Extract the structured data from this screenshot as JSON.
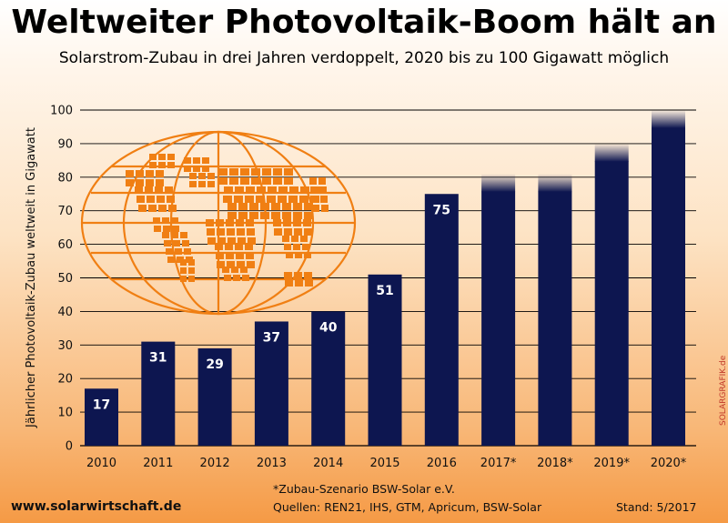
{
  "header": {
    "title": "Weltweiter Photovoltaik-Boom hält an",
    "subtitle": "Solarstrom-Zubau in drei Jahren verdoppelt, 2020 bis zu 100 Gigawatt möglich"
  },
  "footer": {
    "footnote": "*Zubau-Szenario BSW-Solar e.V.",
    "sources": "Quellen: REN21, IHS, GTM, Apricum, BSW-Solar",
    "website": "www.solarwirtschaft.de",
    "stand": "Stand: 5/2017",
    "credit": "SOLARGRAFIK.de"
  },
  "colors": {
    "bar": "#0d1650",
    "accent": "#f07f13",
    "grid": "#000000"
  },
  "illustration": {
    "icon": "globe-with-solar-panels-icon"
  },
  "chart_data": {
    "type": "bar",
    "title": "Weltweiter Photovoltaik-Boom hält an",
    "subtitle": "Solarstrom-Zubau in drei Jahren verdoppelt, 2020 bis zu 100 Gigawatt möglich",
    "xlabel": "",
    "ylabel": "Jährlicher Photovoltaik-Zubau weltweit in Gigawatt",
    "categories": [
      "2010",
      "2011",
      "2012",
      "2013",
      "2014",
      "2015",
      "2016",
      "2017*",
      "2018*",
      "2019*",
      "2020*"
    ],
    "values": [
      17,
      31,
      29,
      37,
      40,
      51,
      75,
      81,
      81,
      90,
      100
    ],
    "labels": [
      "17",
      "31",
      "29",
      "37",
      "40",
      "51",
      "75",
      "",
      "",
      "",
      ""
    ],
    "scenario": [
      false,
      false,
      false,
      false,
      false,
      false,
      false,
      true,
      true,
      true,
      true
    ],
    "ylim": [
      0,
      100
    ],
    "yticks": [
      0,
      10,
      20,
      30,
      40,
      50,
      60,
      70,
      80,
      90,
      100
    ],
    "grid": true
  }
}
